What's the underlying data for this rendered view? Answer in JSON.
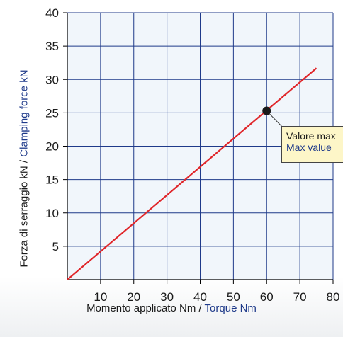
{
  "chart_data": {
    "type": "line",
    "series": [
      {
        "x": [
          0,
          75
        ],
        "y": [
          0,
          31.7
        ],
        "color": "#e0262a"
      }
    ],
    "highlight_point": {
      "x": 60,
      "y": 25.3
    },
    "xlim": [
      0,
      80
    ],
    "ylim": [
      0,
      40
    ],
    "xticks": [
      10,
      20,
      30,
      40,
      50,
      60,
      70,
      80
    ],
    "yticks": [
      5,
      10,
      15,
      20,
      25,
      30,
      35,
      40
    ],
    "grid": true,
    "xlabel_it": "Momento applicato Nm / ",
    "xlabel_en": "Torque Nm",
    "ylabel_it": "Forza di serraggio kN  / ",
    "ylabel_en": "Clamping force kN",
    "annotation": {
      "line1": "Valore max",
      "line2": "Max value"
    }
  },
  "colors": {
    "plot_bg": "#f1f6fb",
    "grid": "#1f3a8a",
    "line": "#e0262a",
    "label_en": "#1f3a8a"
  }
}
